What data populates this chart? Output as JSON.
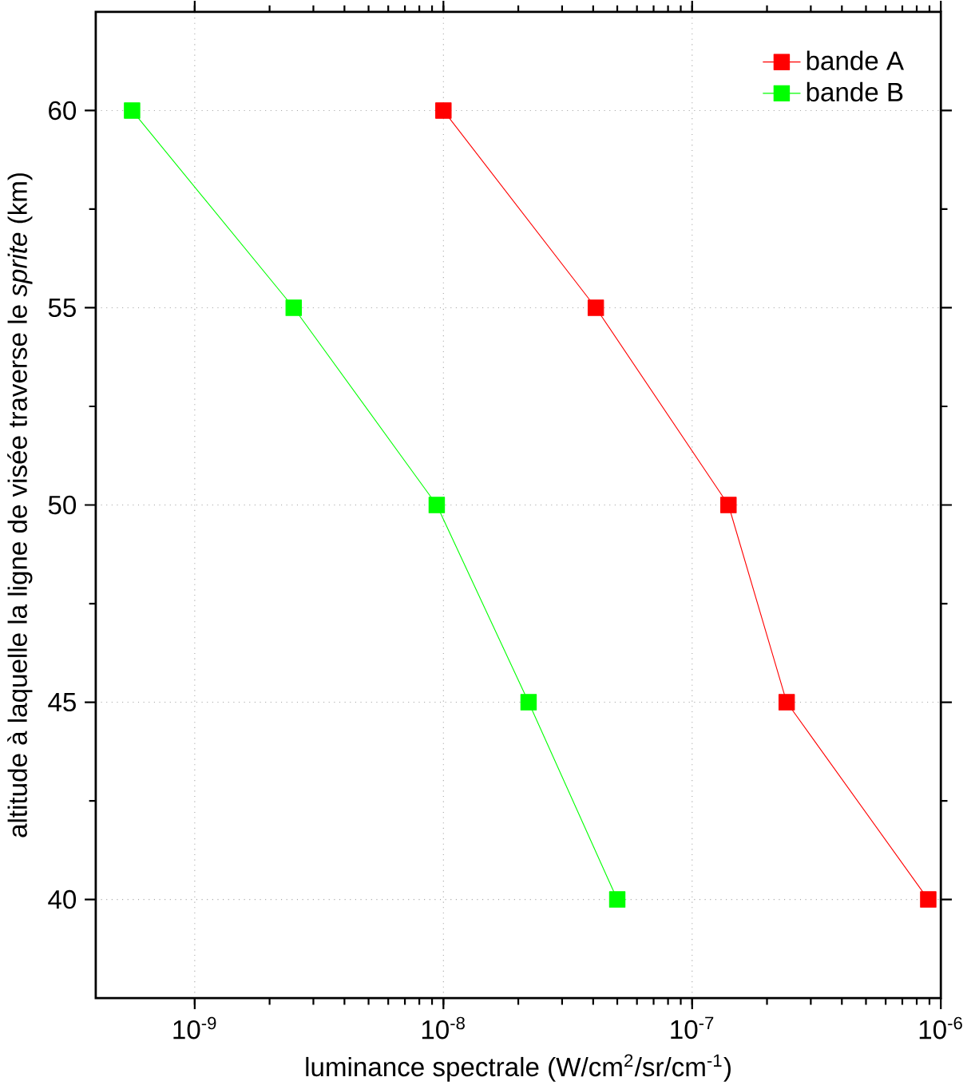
{
  "chart_data": {
    "type": "line",
    "xlabel": "luminance spectrale (W/cm$^{2}$/sr/cm$^{-1}$)",
    "ylabel": "altitude à laquelle la ligne de visée traverse le *sprite* (km)",
    "log": "x",
    "grid": true,
    "legend": "top right",
    "marker": "square",
    "line_style": "solid",
    "xlim": [
      4e-10,
      1e-06
    ],
    "ylim": [
      37.5,
      62.5
    ],
    "xticks": [
      {
        "value": 1e-09,
        "label": "10$^{-9}$"
      },
      {
        "value": 1e-08,
        "label": "10$^{-8}$"
      },
      {
        "value": 1e-07,
        "label": "10$^{-7}$"
      },
      {
        "value": 1e-06,
        "label": "10$^{-6}$"
      }
    ],
    "yticks": [
      40,
      45,
      50,
      55,
      60
    ],
    "series": [
      {
        "name": "bande A",
        "color": "#ff0000",
        "x": [
          1e-08,
          4.1e-08,
          1.4e-07,
          2.4e-07,
          8.9e-07
        ],
        "values": [
          60,
          55,
          50,
          45,
          40
        ]
      },
      {
        "name": "bande B",
        "color": "#00ff00",
        "x": [
          5.6e-10,
          2.5e-09,
          9.4e-09,
          2.2e-08,
          5e-08
        ],
        "values": [
          60,
          55,
          50,
          45,
          40
        ]
      }
    ]
  }
}
